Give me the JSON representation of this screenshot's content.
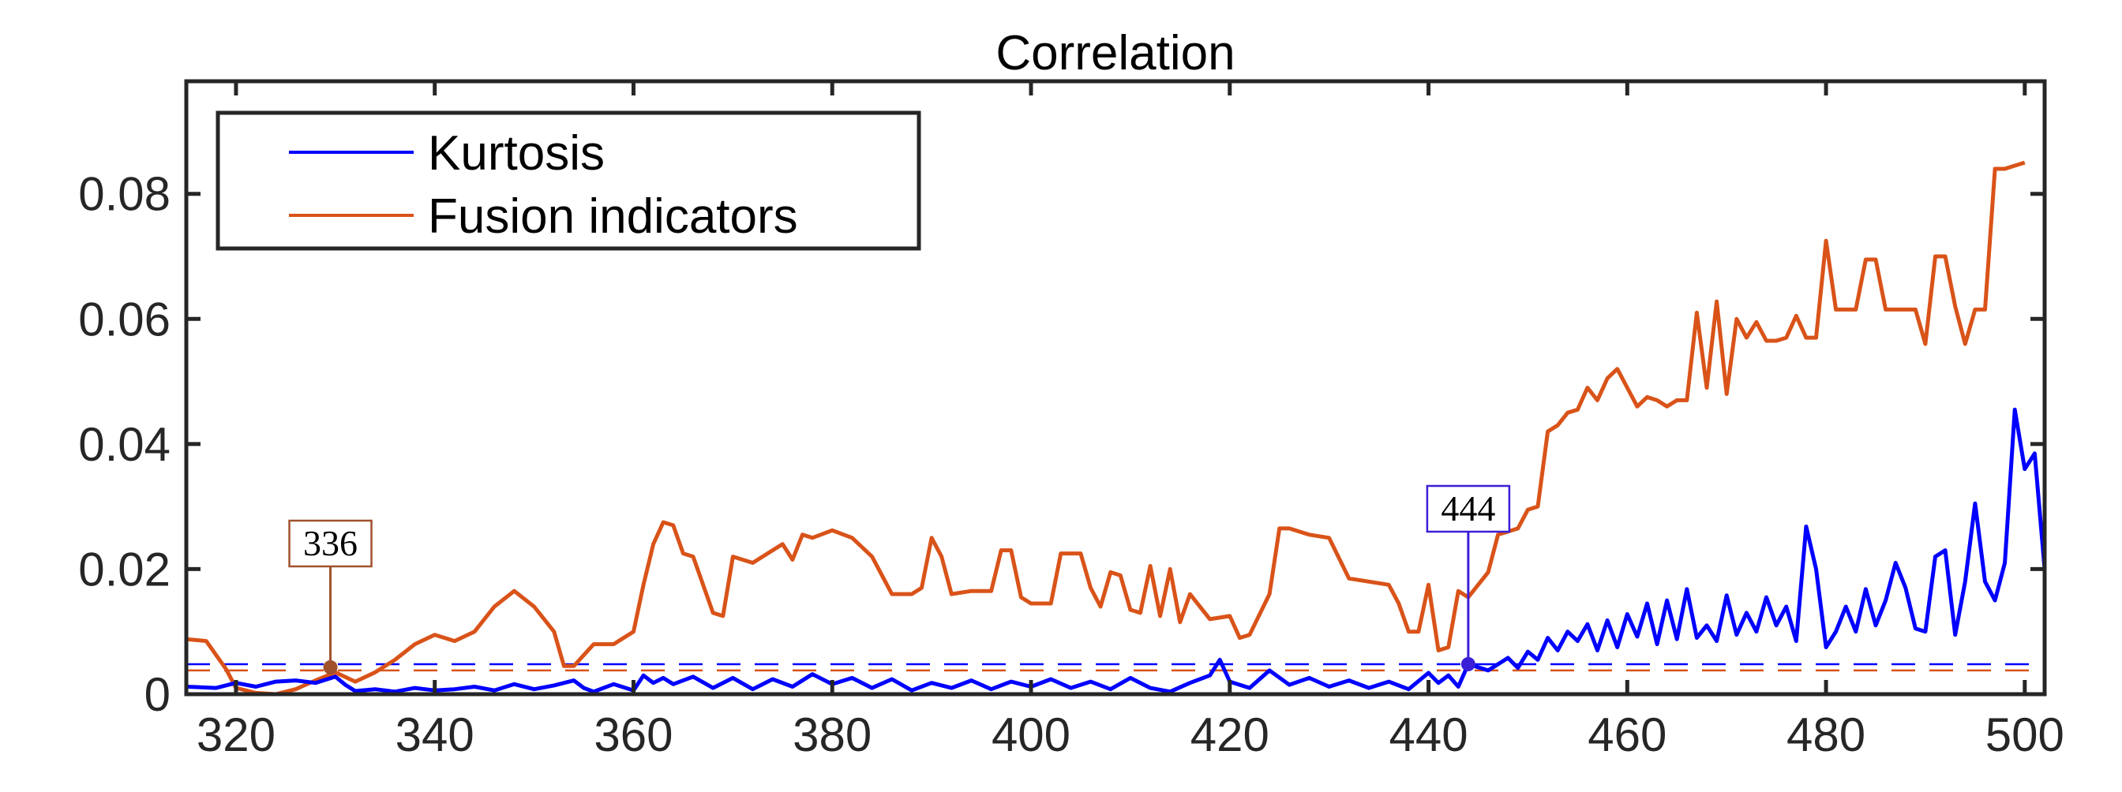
{
  "chart_data": {
    "type": "line",
    "title": "Correlation",
    "xlabel": "",
    "ylabel": "",
    "xlim": [
      315,
      502
    ],
    "ylim": [
      0,
      0.098
    ],
    "xticks": [
      320,
      340,
      360,
      380,
      400,
      420,
      440,
      460,
      480,
      500
    ],
    "yticks": [
      0,
      0.02,
      0.04,
      0.06,
      0.08
    ],
    "ytick_labels": [
      "0",
      "0.02",
      "0.04",
      "0.06",
      "0.08"
    ],
    "legend_position": "top-left",
    "series": [
      {
        "name": "Kurtosis",
        "color": "#0000ff",
        "threshold": 0.0048,
        "points": [
          [
            315,
            0.0012
          ],
          [
            318,
            0.001
          ],
          [
            320,
            0.0018
          ],
          [
            322,
            0.0012
          ],
          [
            324,
            0.002
          ],
          [
            326,
            0.0022
          ],
          [
            328,
            0.0018
          ],
          [
            330,
            0.0028
          ],
          [
            331,
            0.0015
          ],
          [
            332,
            0.0005
          ],
          [
            334,
            0.0008
          ],
          [
            336,
            0.0004
          ],
          [
            338,
            0.001
          ],
          [
            340,
            0.0006
          ],
          [
            342,
            0.0008
          ],
          [
            344,
            0.0012
          ],
          [
            346,
            0.0006
          ],
          [
            348,
            0.0016
          ],
          [
            350,
            0.0008
          ],
          [
            352,
            0.0014
          ],
          [
            354,
            0.0022
          ],
          [
            355,
            0.001
          ],
          [
            356,
            0.0004
          ],
          [
            358,
            0.0016
          ],
          [
            360,
            0.0006
          ],
          [
            361,
            0.003
          ],
          [
            362,
            0.0018
          ],
          [
            363,
            0.0026
          ],
          [
            364,
            0.0016
          ],
          [
            366,
            0.0028
          ],
          [
            368,
            0.001
          ],
          [
            370,
            0.0026
          ],
          [
            372,
            0.0008
          ],
          [
            374,
            0.0024
          ],
          [
            376,
            0.0012
          ],
          [
            378,
            0.0032
          ],
          [
            380,
            0.0016
          ],
          [
            382,
            0.0026
          ],
          [
            384,
            0.001
          ],
          [
            386,
            0.0024
          ],
          [
            388,
            0.0006
          ],
          [
            390,
            0.0018
          ],
          [
            392,
            0.001
          ],
          [
            394,
            0.0022
          ],
          [
            396,
            0.0008
          ],
          [
            398,
            0.002
          ],
          [
            400,
            0.0012
          ],
          [
            402,
            0.0024
          ],
          [
            404,
            0.001
          ],
          [
            406,
            0.002
          ],
          [
            408,
            0.0008
          ],
          [
            410,
            0.0026
          ],
          [
            412,
            0.001
          ],
          [
            414,
            0.0004
          ],
          [
            416,
            0.0018
          ],
          [
            418,
            0.003
          ],
          [
            419,
            0.0055
          ],
          [
            420,
            0.002
          ],
          [
            422,
            0.001
          ],
          [
            424,
            0.0038
          ],
          [
            426,
            0.0015
          ],
          [
            428,
            0.0026
          ],
          [
            430,
            0.0012
          ],
          [
            432,
            0.0022
          ],
          [
            434,
            0.001
          ],
          [
            436,
            0.002
          ],
          [
            438,
            0.0008
          ],
          [
            440,
            0.0034
          ],
          [
            441,
            0.0018
          ],
          [
            442,
            0.003
          ],
          [
            443,
            0.0012
          ],
          [
            444,
            0.0048
          ],
          [
            446,
            0.0038
          ],
          [
            448,
            0.0058
          ],
          [
            449,
            0.0042
          ],
          [
            450,
            0.0068
          ],
          [
            451,
            0.0055
          ],
          [
            452,
            0.009
          ],
          [
            453,
            0.007
          ],
          [
            454,
            0.01
          ],
          [
            455,
            0.0085
          ],
          [
            456,
            0.0112
          ],
          [
            457,
            0.007
          ],
          [
            458,
            0.0118
          ],
          [
            459,
            0.0075
          ],
          [
            460,
            0.0128
          ],
          [
            461,
            0.0092
          ],
          [
            462,
            0.0145
          ],
          [
            463,
            0.008
          ],
          [
            464,
            0.015
          ],
          [
            465,
            0.0088
          ],
          [
            466,
            0.0168
          ],
          [
            467,
            0.009
          ],
          [
            468,
            0.011
          ],
          [
            469,
            0.0085
          ],
          [
            470,
            0.0158
          ],
          [
            471,
            0.0095
          ],
          [
            472,
            0.013
          ],
          [
            473,
            0.01
          ],
          [
            474,
            0.0155
          ],
          [
            475,
            0.011
          ],
          [
            476,
            0.014
          ],
          [
            477,
            0.0085
          ],
          [
            478,
            0.0268
          ],
          [
            479,
            0.02
          ],
          [
            480,
            0.0075
          ],
          [
            481,
            0.01
          ],
          [
            482,
            0.014
          ],
          [
            483,
            0.01
          ],
          [
            484,
            0.0168
          ],
          [
            485,
            0.011
          ],
          [
            486,
            0.015
          ],
          [
            487,
            0.021
          ],
          [
            488,
            0.017
          ],
          [
            489,
            0.0105
          ],
          [
            490,
            0.01
          ],
          [
            491,
            0.022
          ],
          [
            492,
            0.023
          ],
          [
            493,
            0.0095
          ],
          [
            494,
            0.018
          ],
          [
            495,
            0.0305
          ],
          [
            496,
            0.018
          ],
          [
            497,
            0.015
          ],
          [
            498,
            0.021
          ],
          [
            499,
            0.0455
          ],
          [
            500,
            0.036
          ],
          [
            501,
            0.0385
          ],
          [
            502,
            0.02
          ]
        ]
      },
      {
        "name": "Fusion indicators",
        "color": "#d95319",
        "threshold": 0.0038,
        "points": [
          [
            315,
            0.0088
          ],
          [
            317,
            0.0085
          ],
          [
            319,
            0.004
          ],
          [
            320,
            0.001
          ],
          [
            322,
            0.0002
          ],
          [
            324,
            0.0
          ],
          [
            326,
            0.0008
          ],
          [
            328,
            0.0022
          ],
          [
            330,
            0.0035
          ],
          [
            332,
            0.002
          ],
          [
            334,
            0.0035
          ],
          [
            336,
            0.0055
          ],
          [
            338,
            0.008
          ],
          [
            340,
            0.0095
          ],
          [
            342,
            0.0085
          ],
          [
            344,
            0.01
          ],
          [
            346,
            0.014
          ],
          [
            348,
            0.0165
          ],
          [
            350,
            0.014
          ],
          [
            352,
            0.01
          ],
          [
            353,
            0.0045
          ],
          [
            354,
            0.0045
          ],
          [
            356,
            0.008
          ],
          [
            358,
            0.008
          ],
          [
            360,
            0.01
          ],
          [
            361,
            0.0175
          ],
          [
            362,
            0.024
          ],
          [
            363,
            0.0275
          ],
          [
            364,
            0.027
          ],
          [
            365,
            0.0225
          ],
          [
            366,
            0.022
          ],
          [
            368,
            0.013
          ],
          [
            369,
            0.0125
          ],
          [
            370,
            0.022
          ],
          [
            372,
            0.021
          ],
          [
            374,
            0.023
          ],
          [
            375,
            0.024
          ],
          [
            376,
            0.0215
          ],
          [
            377,
            0.0255
          ],
          [
            378,
            0.025
          ],
          [
            380,
            0.0262
          ],
          [
            382,
            0.025
          ],
          [
            384,
            0.022
          ],
          [
            386,
            0.016
          ],
          [
            388,
            0.016
          ],
          [
            389,
            0.017
          ],
          [
            390,
            0.025
          ],
          [
            391,
            0.022
          ],
          [
            392,
            0.016
          ],
          [
            394,
            0.0165
          ],
          [
            396,
            0.0165
          ],
          [
            397,
            0.023
          ],
          [
            398,
            0.023
          ],
          [
            399,
            0.0155
          ],
          [
            400,
            0.0145
          ],
          [
            402,
            0.0145
          ],
          [
            403,
            0.0225
          ],
          [
            405,
            0.0225
          ],
          [
            406,
            0.017
          ],
          [
            407,
            0.014
          ],
          [
            408,
            0.0195
          ],
          [
            409,
            0.019
          ],
          [
            410,
            0.0135
          ],
          [
            411,
            0.013
          ],
          [
            412,
            0.0205
          ],
          [
            413,
            0.0125
          ],
          [
            414,
            0.02
          ],
          [
            415,
            0.0115
          ],
          [
            416,
            0.016
          ],
          [
            418,
            0.012
          ],
          [
            420,
            0.0125
          ],
          [
            421,
            0.009
          ],
          [
            422,
            0.0095
          ],
          [
            424,
            0.016
          ],
          [
            425,
            0.0265
          ],
          [
            426,
            0.0265
          ],
          [
            428,
            0.0255
          ],
          [
            430,
            0.025
          ],
          [
            432,
            0.0185
          ],
          [
            434,
            0.018
          ],
          [
            436,
            0.0175
          ],
          [
            437,
            0.0145
          ],
          [
            438,
            0.01
          ],
          [
            439,
            0.01
          ],
          [
            440,
            0.0175
          ],
          [
            441,
            0.007
          ],
          [
            442,
            0.0075
          ],
          [
            443,
            0.0165
          ],
          [
            444,
            0.0155
          ],
          [
            446,
            0.0195
          ],
          [
            447,
            0.0255
          ],
          [
            449,
            0.0265
          ],
          [
            450,
            0.0295
          ],
          [
            451,
            0.03
          ],
          [
            452,
            0.042
          ],
          [
            453,
            0.043
          ],
          [
            454,
            0.045
          ],
          [
            455,
            0.0455
          ],
          [
            456,
            0.049
          ],
          [
            457,
            0.047
          ],
          [
            458,
            0.0505
          ],
          [
            459,
            0.052
          ],
          [
            460,
            0.049
          ],
          [
            461,
            0.046
          ],
          [
            462,
            0.0475
          ],
          [
            463,
            0.047
          ],
          [
            464,
            0.046
          ],
          [
            465,
            0.047
          ],
          [
            466,
            0.047
          ],
          [
            467,
            0.061
          ],
          [
            468,
            0.049
          ],
          [
            469,
            0.0628
          ],
          [
            470,
            0.048
          ],
          [
            471,
            0.06
          ],
          [
            472,
            0.057
          ],
          [
            473,
            0.0595
          ],
          [
            474,
            0.0565
          ],
          [
            475,
            0.0565
          ],
          [
            476,
            0.057
          ],
          [
            477,
            0.0605
          ],
          [
            478,
            0.057
          ],
          [
            479,
            0.057
          ],
          [
            480,
            0.0725
          ],
          [
            481,
            0.0615
          ],
          [
            482,
            0.0615
          ],
          [
            483,
            0.0615
          ],
          [
            484,
            0.0695
          ],
          [
            485,
            0.0695
          ],
          [
            486,
            0.0615
          ],
          [
            487,
            0.0615
          ],
          [
            488,
            0.0615
          ],
          [
            489,
            0.0615
          ],
          [
            490,
            0.056
          ],
          [
            491,
            0.07
          ],
          [
            492,
            0.07
          ],
          [
            493,
            0.062
          ],
          [
            494,
            0.056
          ],
          [
            495,
            0.0615
          ],
          [
            496,
            0.0615
          ],
          [
            497,
            0.084
          ],
          [
            498,
            0.084
          ],
          [
            499,
            0.0845
          ],
          [
            500,
            0.085
          ]
        ]
      }
    ],
    "annotations": [
      {
        "label": "336",
        "x": 329.5,
        "y": 0.0043,
        "series": "Fusion indicators",
        "color": "#a0522d"
      },
      {
        "label": "444",
        "x": 444,
        "y": 0.0048,
        "series": "Kurtosis",
        "color": "#3a1fd6"
      }
    ]
  }
}
